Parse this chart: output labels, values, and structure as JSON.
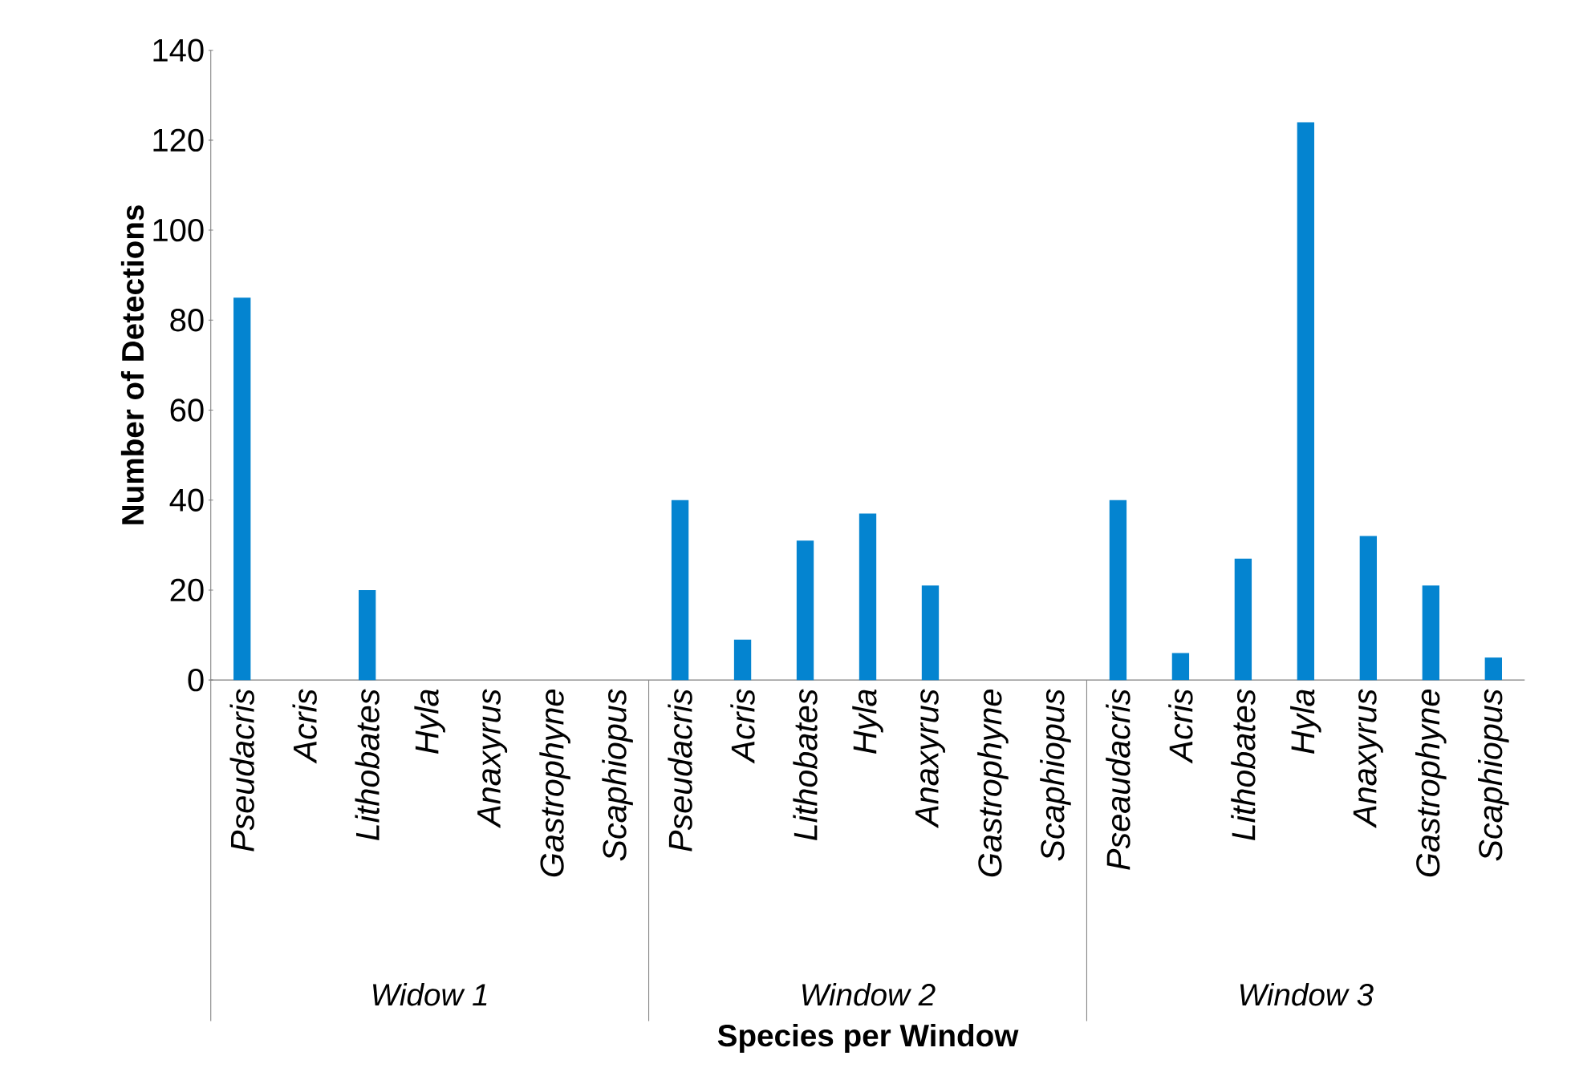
{
  "chart_data": {
    "type": "bar",
    "xlabel": "Species per Window",
    "ylabel": "Number of Detections",
    "categories": [
      "Pseudacris",
      "Acris",
      "Lithobates",
      "Hyla",
      "Anaxyrus",
      "Gastrophyne",
      "Scaphiopus",
      "Pseudacris",
      "Acris",
      "Lithobates",
      "Hyla",
      "Anaxyrus",
      "Gastrophyne",
      "Scaphiopus",
      "Pseaudacris",
      "Acris",
      "Lithobates",
      "Hyla",
      "Anaxyrus",
      "Gastrophyne",
      "Scaphiopus"
    ],
    "values": [
      85,
      0,
      20,
      0,
      0,
      0,
      0,
      40,
      9,
      31,
      37,
      21,
      0,
      0,
      40,
      6,
      27,
      124,
      32,
      21,
      5
    ],
    "color": "#0484d0",
    "annotations": [
      "Widow 1",
      "Window 2",
      "Window 3"
    ],
    "ylim": [
      0,
      140
    ],
    "yticks": [
      0,
      20,
      40,
      60,
      80,
      100,
      120,
      140
    ],
    "grid": false
  }
}
